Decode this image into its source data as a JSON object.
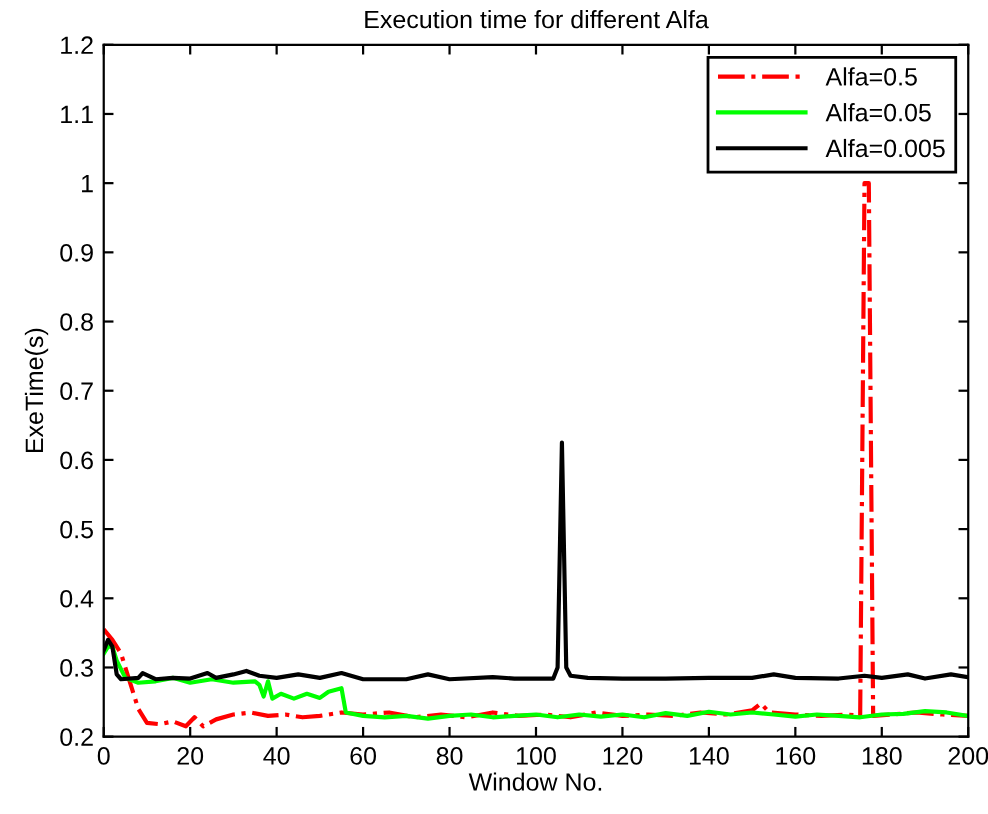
{
  "chart_data": {
    "type": "line",
    "title": "Execution time for different Alfa",
    "xlabel": "Window No.",
    "ylabel": "ExeTime(s)",
    "xlim": [
      0,
      200
    ],
    "ylim": [
      0.2,
      1.2
    ],
    "xticks": [
      0,
      20,
      40,
      60,
      80,
      100,
      120,
      140,
      160,
      180,
      200
    ],
    "yticks": [
      0.2,
      0.3,
      0.4,
      0.5,
      0.6,
      0.7,
      0.8,
      0.9,
      1,
      1.1,
      1.2
    ],
    "grid": false,
    "legend": "top right",
    "series": [
      {
        "name": "Alfa=0.5",
        "color": "#ff0000",
        "line_style": "dashdot",
        "x": [
          0,
          2,
          4,
          6,
          8,
          10,
          13,
          16,
          19,
          21,
          23,
          26,
          30,
          34,
          38,
          42,
          46,
          50,
          55,
          60,
          66,
          72,
          78,
          84,
          90,
          96,
          102,
          108,
          114,
          120,
          126,
          132,
          138,
          144,
          150,
          152,
          154,
          160,
          166,
          172,
          175,
          176,
          177,
          178,
          182,
          188,
          194,
          200
        ],
        "values": [
          0.355,
          0.34,
          0.32,
          0.28,
          0.24,
          0.22,
          0.218,
          0.222,
          0.215,
          0.228,
          0.215,
          0.225,
          0.232,
          0.235,
          0.23,
          0.232,
          0.228,
          0.23,
          0.235,
          0.232,
          0.235,
          0.228,
          0.232,
          0.228,
          0.235,
          0.23,
          0.232,
          0.228,
          0.235,
          0.23,
          0.232,
          0.23,
          0.235,
          0.232,
          0.238,
          0.248,
          0.235,
          0.232,
          0.23,
          0.232,
          0.23,
          1.0,
          1.0,
          0.23,
          0.232,
          0.235,
          0.232,
          0.23
        ]
      },
      {
        "name": "Alfa=0.05",
        "color": "#00ff00",
        "line_style": "solid",
        "x": [
          0,
          1,
          2,
          3,
          5,
          8,
          12,
          16,
          20,
          25,
          30,
          35,
          36,
          37,
          38,
          39,
          41,
          44,
          47,
          50,
          52,
          55,
          56,
          60,
          65,
          70,
          75,
          80,
          85,
          90,
          95,
          100,
          105,
          110,
          115,
          120,
          125,
          130,
          135,
          140,
          145,
          150,
          155,
          160,
          165,
          170,
          175,
          180,
          185,
          190,
          195,
          200
        ],
        "values": [
          0.32,
          0.33,
          0.33,
          0.31,
          0.285,
          0.278,
          0.28,
          0.285,
          0.278,
          0.283,
          0.278,
          0.28,
          0.275,
          0.258,
          0.28,
          0.255,
          0.262,
          0.255,
          0.262,
          0.256,
          0.265,
          0.27,
          0.235,
          0.23,
          0.228,
          0.23,
          0.226,
          0.23,
          0.232,
          0.228,
          0.23,
          0.232,
          0.228,
          0.232,
          0.229,
          0.232,
          0.228,
          0.234,
          0.23,
          0.236,
          0.232,
          0.235,
          0.232,
          0.229,
          0.232,
          0.23,
          0.228,
          0.232,
          0.233,
          0.237,
          0.235,
          0.23
        ]
      },
      {
        "name": "Alfa=0.005",
        "color": "#000000",
        "line_style": "solid",
        "x": [
          0,
          1,
          2,
          3,
          4,
          8,
          9,
          12,
          16,
          20,
          22,
          24,
          26,
          30,
          33,
          36,
          40,
          45,
          50,
          55,
          60,
          70,
          75,
          80,
          90,
          95,
          100,
          104,
          105,
          106,
          107,
          108,
          112,
          120,
          130,
          140,
          150,
          155,
          160,
          170,
          176,
          180,
          186,
          190,
          196,
          200
        ],
        "values": [
          0.325,
          0.34,
          0.33,
          0.29,
          0.283,
          0.285,
          0.292,
          0.283,
          0.285,
          0.284,
          0.288,
          0.292,
          0.285,
          0.29,
          0.295,
          0.288,
          0.285,
          0.29,
          0.285,
          0.292,
          0.283,
          0.283,
          0.29,
          0.283,
          0.286,
          0.284,
          0.284,
          0.284,
          0.3,
          0.625,
          0.3,
          0.288,
          0.285,
          0.284,
          0.284,
          0.285,
          0.285,
          0.29,
          0.285,
          0.284,
          0.288,
          0.285,
          0.29,
          0.284,
          0.29,
          0.286
        ]
      }
    ]
  }
}
